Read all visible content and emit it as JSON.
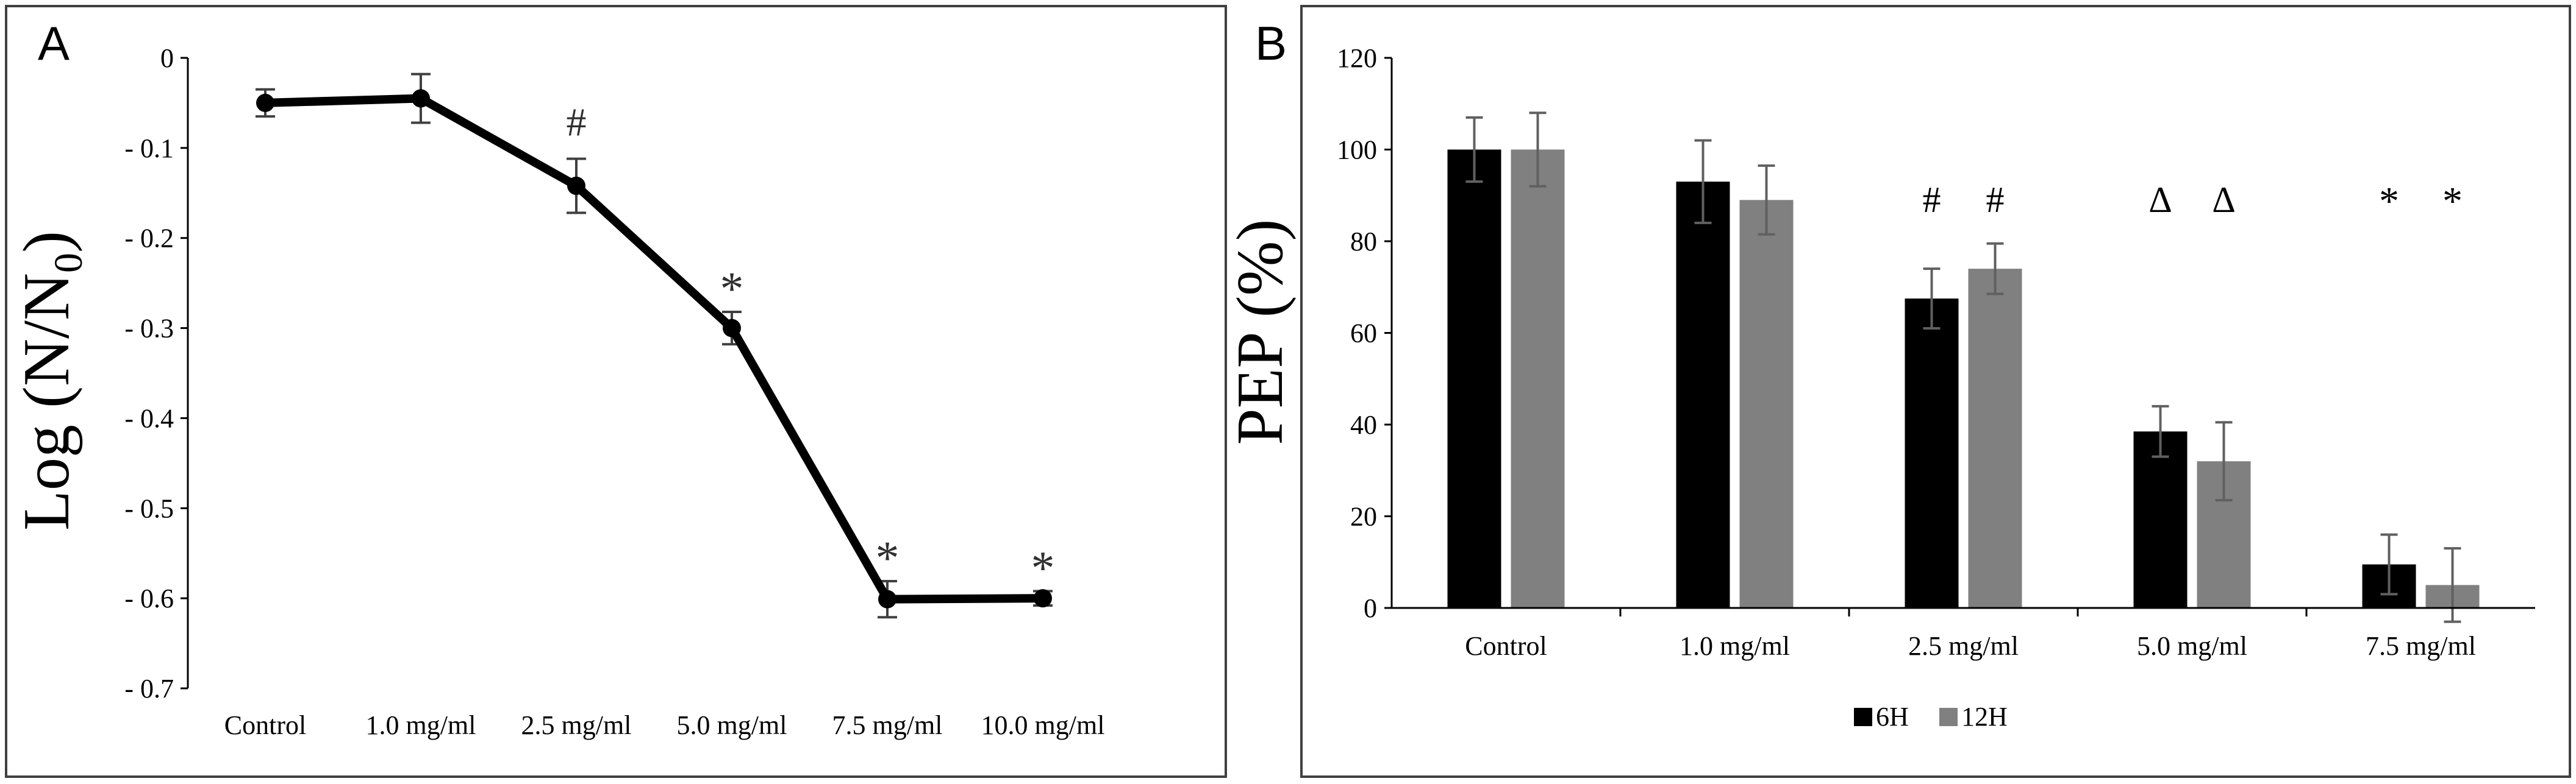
{
  "chart_data": [
    {
      "panel": "A",
      "type": "line",
      "ylabel_main": "Log (N/N",
      "ylabel_sub": "0",
      "ylabel_close": ")",
      "xlabel": "",
      "categories": [
        "Control",
        "1.0 mg/ml",
        "2.5 mg/ml",
        "5.0 mg/ml",
        "7.5 mg/ml",
        "10.0 mg/ml"
      ],
      "values": [
        -0.05,
        -0.045,
        -0.142,
        -0.3,
        -0.601,
        -0.6
      ],
      "errors": [
        0.015,
        0.027,
        0.03,
        0.018,
        0.02,
        0.008
      ],
      "annotations": [
        "",
        "",
        "#",
        "*",
        "*",
        "*"
      ],
      "ylim": [
        -0.7,
        0
      ],
      "yticks": [
        0,
        -0.1,
        -0.2,
        -0.3,
        -0.4,
        -0.5,
        -0.6,
        -0.7
      ],
      "ytick_labels": [
        "0",
        "- 0.1",
        "- 0.2",
        "- 0.3",
        "- 0.4",
        "- 0.5",
        "- 0.6",
        "- 0.7"
      ],
      "grid": false
    },
    {
      "panel": "B",
      "type": "bar",
      "ylabel": "PEP (%)",
      "xlabel": "",
      "categories": [
        "Control",
        "1.0 mg/ml",
        "2.5 mg/ml",
        "5.0 mg/ml",
        "7.5 mg/ml"
      ],
      "series": [
        {
          "name": "6H",
          "color": "#000000",
          "values": [
            100,
            93,
            67.5,
            38.5,
            9.5
          ],
          "errors": [
            7,
            9,
            6.5,
            5.5,
            6.5
          ]
        },
        {
          "name": "12H",
          "color": "#808080",
          "values": [
            100,
            89,
            74,
            32,
            5
          ],
          "errors": [
            8,
            7.5,
            5.5,
            8.5,
            8
          ]
        }
      ],
      "annotations": [
        "",
        "",
        "#",
        "Δ",
        "*"
      ],
      "ylim": [
        0,
        120
      ],
      "yticks": [
        0,
        20,
        40,
        60,
        80,
        100,
        120
      ],
      "legend": "bottom",
      "grid": false
    }
  ]
}
